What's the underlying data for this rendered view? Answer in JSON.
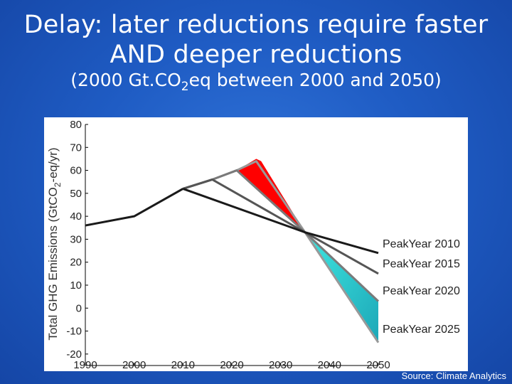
{
  "slide": {
    "title_line1": "Delay: later reductions require faster",
    "title_line2": "AND deeper reductions",
    "subtitle_pre": "(2000 Gt.CO",
    "subtitle_sub": "2",
    "subtitle_post": "eq between 2000 and 2050)",
    "source": "Source: Climate Analytics"
  },
  "chart_data": {
    "type": "line",
    "ylabel_pre": "Total GHG Emissions (GtCO",
    "ylabel_sub": "2",
    "ylabel_post": "-eq/yr)",
    "xlim": [
      1990,
      2050
    ],
    "ylim": [
      -25,
      80
    ],
    "x_ticks": [
      1990,
      2000,
      2010,
      2020,
      2030,
      2040,
      2050
    ],
    "y_ticks": [
      80,
      70,
      60,
      50,
      40,
      30,
      20,
      10,
      0,
      -10,
      -20
    ],
    "history": {
      "x": [
        1990,
        2000,
        2010
      ],
      "y": [
        36,
        40,
        52
      ]
    },
    "convergence_point": {
      "x": 2035,
      "y": 33
    },
    "series": [
      {
        "name": "PeakYear 2010",
        "x": [
          2010,
          2035,
          2050
        ],
        "y": [
          52,
          33,
          24
        ],
        "color": "#1a1a1a"
      },
      {
        "name": "PeakYear 2015",
        "x": [
          2010,
          2016,
          2035,
          2050
        ],
        "y": [
          52,
          56,
          33,
          15
        ],
        "color": "#555555"
      },
      {
        "name": "PeakYear 2020",
        "x": [
          2010,
          2016,
          2021,
          2035,
          2050
        ],
        "y": [
          52,
          56,
          60,
          33,
          3
        ],
        "color": "#7a7a7a"
      },
      {
        "name": "PeakYear 2025",
        "x": [
          2010,
          2016,
          2021,
          2025,
          2035,
          2050
        ],
        "y": [
          52,
          56,
          60,
          64,
          33,
          -15
        ],
        "color": "#999999"
      }
    ],
    "fill_above": {
      "color": "#ff0000",
      "x": [
        2021,
        2025,
        2026,
        2035
      ],
      "upper": [
        60,
        65,
        64,
        33
      ]
    },
    "fill_below": {
      "color": "#30d8d8",
      "x_start": 2035,
      "x_end": 2050,
      "upper_end": 3,
      "lower_end": -15
    },
    "legend_placement": "right"
  }
}
